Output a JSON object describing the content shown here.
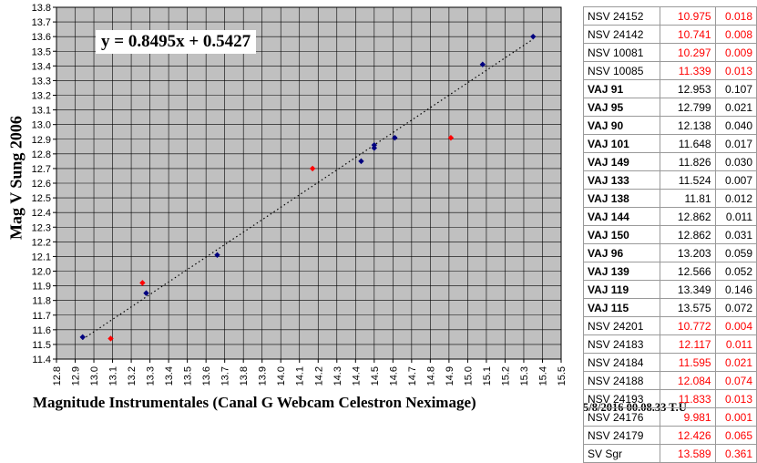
{
  "chart_data": {
    "type": "scatter",
    "title": "",
    "xlabel": "Magnitude Instrumentales (Canal G Webcam Celestron Neximage)",
    "ylabel": "Mag V Sung 2006",
    "xlim": [
      12.8,
      15.5
    ],
    "ylim": [
      11.4,
      13.8
    ],
    "x_ticks": [
      "12.8",
      "12.9",
      "13.0",
      "13.1",
      "13.2",
      "13.3",
      "13.4",
      "13.5",
      "13.6",
      "13.7",
      "13.8",
      "13.9",
      "14.0",
      "14.1",
      "14.2",
      "14.3",
      "14.4",
      "14.5",
      "14.6",
      "14.7",
      "14.8",
      "14.9",
      "15.0",
      "15.1",
      "15.2",
      "15.3",
      "15.4",
      "15.5"
    ],
    "y_ticks": [
      "11.4",
      "11.5",
      "11.6",
      "11.7",
      "11.8",
      "11.9",
      "12.0",
      "12.1",
      "12.2",
      "12.3",
      "12.4",
      "12.5",
      "12.6",
      "12.7",
      "12.8",
      "12.9",
      "13.0",
      "13.1",
      "13.2",
      "13.3",
      "13.4",
      "13.5",
      "13.6",
      "13.7",
      "13.8"
    ],
    "grid": true,
    "plot_background": "#c0c0c0",
    "series": [
      {
        "color": "#00007f",
        "marker": "diamond",
        "points": [
          [
            12.94,
            11.55
          ],
          [
            13.28,
            11.85
          ],
          [
            13.66,
            12.11
          ],
          [
            14.43,
            12.75
          ],
          [
            14.5,
            12.84
          ],
          [
            14.5,
            12.86
          ],
          [
            14.61,
            12.91
          ],
          [
            15.08,
            13.41
          ],
          [
            15.35,
            13.6
          ]
        ]
      },
      {
        "color": "#ff0000",
        "marker": "diamond",
        "points": [
          [
            13.09,
            11.54
          ],
          [
            13.26,
            11.92
          ],
          [
            14.17,
            12.7
          ],
          [
            14.91,
            12.91
          ]
        ]
      }
    ],
    "trendline": {
      "slope": 0.8495,
      "intercept": 0.5427,
      "x_range": [
        12.94,
        15.35
      ],
      "style": "dotted",
      "equation": "y = 0.8495x + 0.5427"
    }
  },
  "timestamp": "5/8/2016 00.08.33 T.U",
  "table": [
    {
      "name": "NSV 24152",
      "mag": "10.975",
      "err": "0.018",
      "bold": false,
      "red": true
    },
    {
      "name": "NSV 24142",
      "mag": "10.741",
      "err": "0.008",
      "bold": false,
      "red": true
    },
    {
      "name": "NSV 10081",
      "mag": "10.297",
      "err": "0.009",
      "bold": false,
      "red": true
    },
    {
      "name": "NSV 10085",
      "mag": "11.339",
      "err": "0.013",
      "bold": false,
      "red": true
    },
    {
      "name": "VAJ 91",
      "mag": "12.953",
      "err": "0.107",
      "bold": true,
      "red": false
    },
    {
      "name": "VAJ 95",
      "mag": "12.799",
      "err": "0.021",
      "bold": true,
      "red": false
    },
    {
      "name": "VAJ 90",
      "mag": "12.138",
      "err": "0.040",
      "bold": true,
      "red": false
    },
    {
      "name": "VAJ 101",
      "mag": "11.648",
      "err": "0.017",
      "bold": true,
      "red": false
    },
    {
      "name": "VAJ 149",
      "mag": "11.826",
      "err": "0.030",
      "bold": true,
      "red": false
    },
    {
      "name": "VAJ 133",
      "mag": "11.524",
      "err": "0.007",
      "bold": true,
      "red": false
    },
    {
      "name": "VAJ 138",
      "mag": "11.81",
      "err": "0.012",
      "bold": true,
      "red": false
    },
    {
      "name": "VAJ 144",
      "mag": "12.862",
      "err": "0.011",
      "bold": true,
      "red": false
    },
    {
      "name": "VAJ 150",
      "mag": "12.862",
      "err": "0.031",
      "bold": true,
      "red": false
    },
    {
      "name": "VAJ 96",
      "mag": "13.203",
      "err": "0.059",
      "bold": true,
      "red": false
    },
    {
      "name": "VAJ 139",
      "mag": "12.566",
      "err": "0.052",
      "bold": true,
      "red": false
    },
    {
      "name": "VAJ 119",
      "mag": "13.349",
      "err": "0.146",
      "bold": true,
      "red": false
    },
    {
      "name": "VAJ 115",
      "mag": "13.575",
      "err": "0.072",
      "bold": true,
      "red": false
    },
    {
      "name": "NSV 24201",
      "mag": "10.772",
      "err": "0.004",
      "bold": false,
      "red": true
    },
    {
      "name": "NSV 24183",
      "mag": "12.117",
      "err": "0.011",
      "bold": false,
      "red": true
    },
    {
      "name": "NSV 24184",
      "mag": "11.595",
      "err": "0.021",
      "bold": false,
      "red": true
    },
    {
      "name": "NSV 24188",
      "mag": "12.084",
      "err": "0.074",
      "bold": false,
      "red": true
    },
    {
      "name": "NSV 24193",
      "mag": "11.833",
      "err": "0.013",
      "bold": false,
      "red": true
    },
    {
      "name": "NSV 24176",
      "mag": "9.981",
      "err": "0.001",
      "bold": false,
      "red": true
    },
    {
      "name": "NSV 24179",
      "mag": "12.426",
      "err": "0.065",
      "bold": false,
      "red": true
    },
    {
      "name": "SV Sgr",
      "mag": "13.589",
      "err": "0.361",
      "bold": false,
      "red": true
    }
  ]
}
